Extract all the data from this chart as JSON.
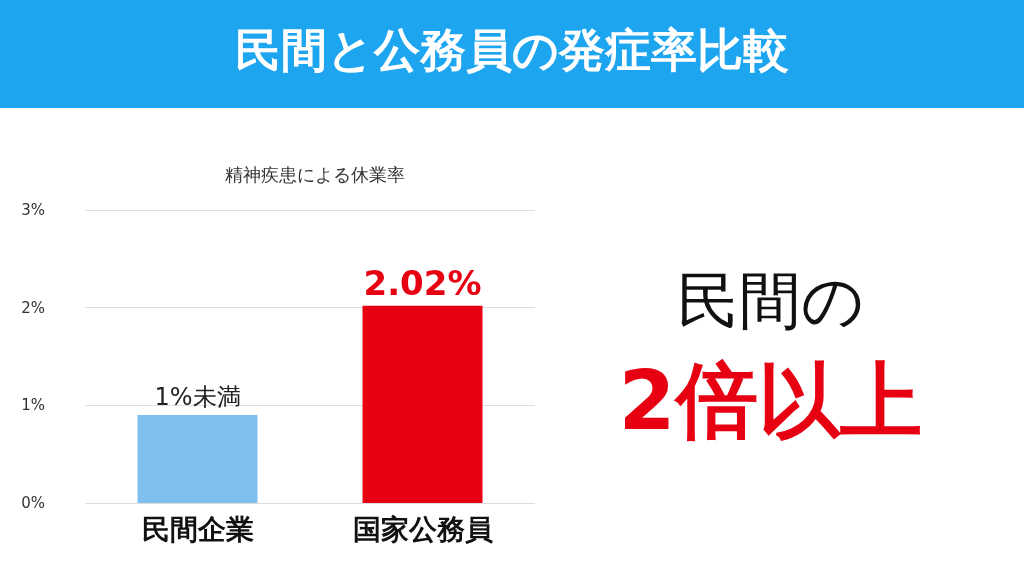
{
  "chart_data": {
    "type": "bar",
    "title": "民間と公務員の発症率比較",
    "subtitle": "精神疾患による休業率",
    "categories": [
      "民間企業",
      "国家公務員"
    ],
    "values": [
      0.9,
      2.02
    ],
    "colors": [
      "#7fbff0",
      "#e60012"
    ],
    "value_labels": [
      "1%未満",
      "2.02%"
    ],
    "ylim": [
      0,
      3
    ],
    "yticks": [
      {
        "value": 0,
        "label": "0%"
      },
      {
        "value": 1,
        "label": "1%"
      },
      {
        "value": 2,
        "label": "2%"
      },
      {
        "value": 3,
        "label": "3%"
      }
    ],
    "grid": "y",
    "annotations": [
      "民間の",
      "2倍以上"
    ]
  }
}
